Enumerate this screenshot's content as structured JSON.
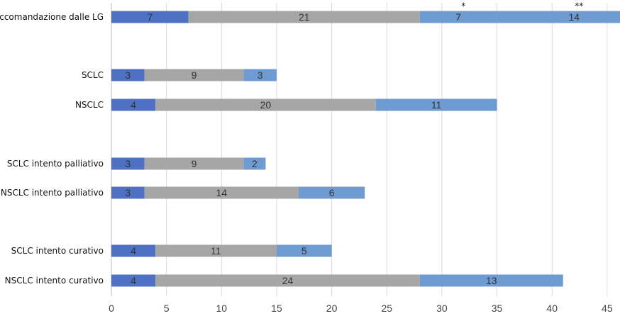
{
  "chart_data": {
    "type": "bar",
    "orientation": "horizontal",
    "stacked": true,
    "categories": [
      "Raccomandazione dalle LG",
      "SCLC",
      "NSCLC",
      "SCLC intento palliativo",
      "NSCLC intento palliativo",
      "SCLC intento curativo",
      "NSCLC intento curativo"
    ],
    "bars": [
      {
        "category": "Raccomandazione dalle LG",
        "segments": [
          7,
          21,
          7,
          14
        ],
        "marks": [
          "",
          "",
          "*",
          "**"
        ]
      },
      {
        "category": "SCLC",
        "segments": [
          3,
          9,
          3
        ]
      },
      {
        "category": "NSCLC",
        "segments": [
          4,
          20,
          11
        ]
      },
      {
        "category": "SCLC intento palliativo",
        "segments": [
          3,
          9,
          2
        ]
      },
      {
        "category": "NSCLC intento palliativo",
        "segments": [
          3,
          14,
          6
        ]
      },
      {
        "category": "SCLC intento curativo",
        "segments": [
          4,
          11,
          5
        ]
      },
      {
        "category": "NSCLC intento curativo",
        "segments": [
          4,
          24,
          13
        ]
      }
    ],
    "colors": [
      "#4e71c4",
      "#a6a6a6",
      "#6e9bd2",
      "#6e9bd2"
    ],
    "xlim": [
      0,
      45
    ],
    "xticks": [
      0,
      5,
      10,
      15,
      20,
      25,
      30,
      35,
      40,
      45
    ],
    "grid": "vertical",
    "legend": "none",
    "title": "",
    "xlabel": "",
    "ylabel": ""
  }
}
